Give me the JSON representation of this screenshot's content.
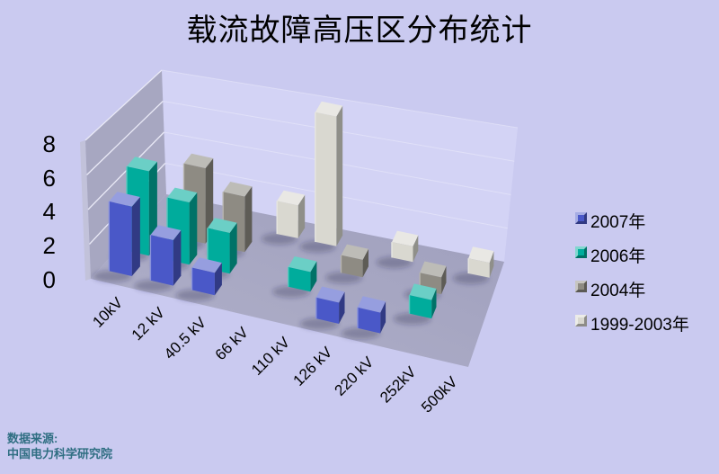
{
  "title": "载流故障高压区分布统计",
  "source": {
    "line1": "数据来源:",
    "line2": "中国电力科学研究院"
  },
  "colors": {
    "background": "#cacaf0",
    "back_wall": "#d3d3f5",
    "side_wall": "#a7a7c1",
    "floor": "#a9a9c4",
    "gridline": "#e9e9f6",
    "source_text": "#2f6e82"
  },
  "chart_data": {
    "type": "bar",
    "projection": "3d",
    "title": "载流故障高压区分布统计",
    "xlabel": "",
    "ylabel": "",
    "ylim": [
      0,
      8
    ],
    "yticks": [
      "0",
      "2",
      "4",
      "6",
      "8"
    ],
    "grid": true,
    "legend_position": "right",
    "categories": [
      "10kV",
      "12 kV",
      "40.5 kV",
      "66 kV",
      "110 kV",
      "126 kV",
      "220 kV",
      "252kV",
      "500kV"
    ],
    "series": [
      {
        "name": "2007年",
        "color": "#4a58c8",
        "values": [
          3,
          2,
          1,
          0,
          0,
          1,
          1,
          0,
          0
        ]
      },
      {
        "name": "2006年",
        "color": "#00ac9c",
        "values": [
          4,
          3,
          2,
          0,
          1,
          0,
          0,
          1,
          0
        ]
      },
      {
        "name": "2004年",
        "color": "#8e8b83",
        "values": [
          0,
          4,
          3,
          0,
          0,
          1,
          0,
          1,
          0
        ]
      },
      {
        "name": "1999-2003年",
        "color": "#d9d8d0",
        "values": [
          0,
          0,
          0,
          2,
          8,
          0,
          1,
          0,
          1
        ]
      }
    ]
  }
}
